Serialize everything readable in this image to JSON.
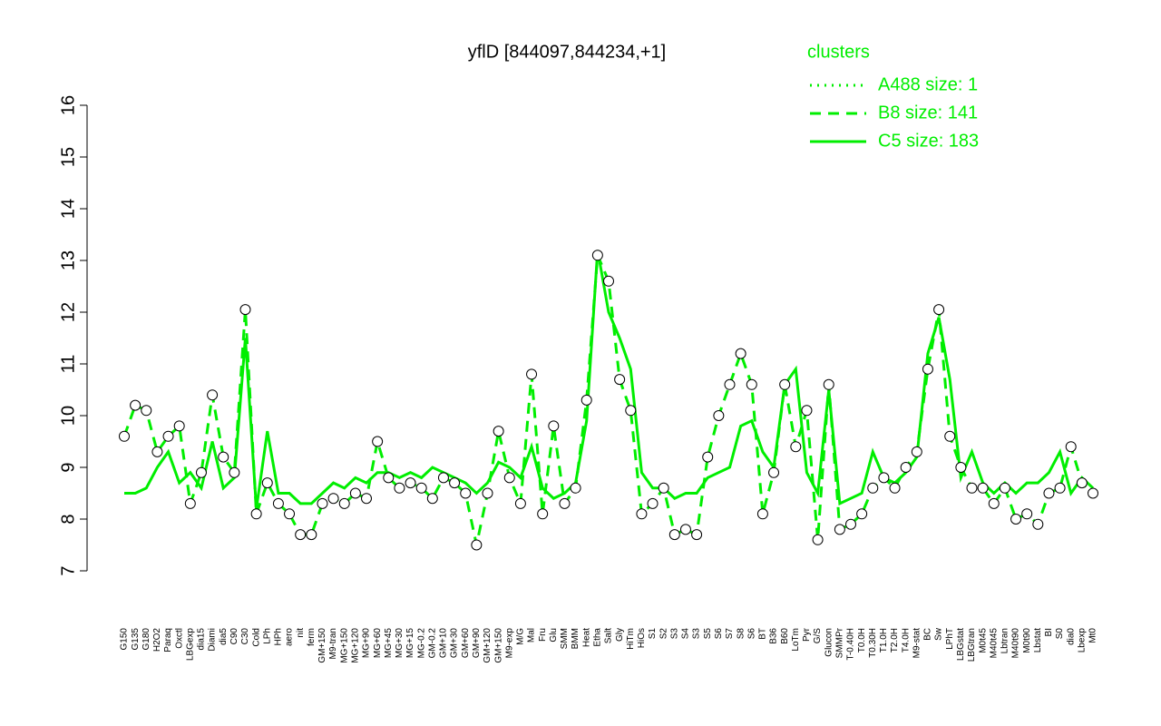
{
  "chart_data": {
    "type": "line",
    "title": "yflD [844097,844234,+1]",
    "legend_title": "clusters",
    "legend_position": "top-right",
    "categories": [
      "G150",
      "G135",
      "G180",
      "H2O2",
      "Paraq",
      "Oxctl",
      "LBGexp",
      "dia15",
      "Diami",
      "dia5",
      "C90",
      "C30",
      "Cold",
      "LPh",
      "HPh",
      "aero",
      "nit",
      "ferm",
      "GM+150",
      "M9-tran",
      "MG+150",
      "MG+120",
      "MG+90",
      "MG+60",
      "MG+45",
      "MG+30",
      "MG+15",
      "MG-0.2",
      "GM-0.2",
      "GM+10",
      "GM+30",
      "GM+60",
      "GM+90",
      "GM+120",
      "GM+150",
      "M9-exp",
      "M/G",
      "Mal",
      "Fru",
      "Glu",
      "SMM",
      "BMM",
      "Heat",
      "Etha",
      "Salt",
      "Gly",
      "HiTm",
      "HiOs",
      "S1",
      "S2",
      "S3",
      "S4",
      "S3",
      "S5",
      "S6",
      "S7",
      "S8",
      "S6",
      "BT",
      "B36",
      "B60",
      "LoTm",
      "Pyr",
      "G/S",
      "Glucon",
      "SMMPr",
      "T-0.40H",
      "T0.0H",
      "T0.30H",
      "T1.0H",
      "T2.0H",
      "T4.0H",
      "M9-stat",
      "BC",
      "Sw",
      "LPhT",
      "LBGstat",
      "LBGtran",
      "M0t45",
      "M40t45",
      "Lbtran",
      "M40t90",
      "M0t90",
      "Lbstat",
      "BI",
      "S0",
      "dia0",
      "Lbexp",
      "Mt0"
    ],
    "series": [
      {
        "name": "A488 size: 1",
        "color": "#00ee00",
        "dash": "dotted",
        "markers": false,
        "values": [
          null,
          null,
          null,
          null,
          null,
          null,
          null,
          null,
          null,
          null,
          null,
          null,
          null,
          null,
          null,
          null,
          null,
          null,
          null,
          null,
          null,
          null,
          null,
          null,
          null,
          null,
          null,
          null,
          null,
          null,
          null,
          null,
          null,
          null,
          null,
          null,
          null,
          null,
          null,
          null,
          null,
          null,
          null,
          null,
          null,
          null,
          null,
          null,
          null,
          null,
          null,
          null,
          null,
          null,
          null,
          null,
          null,
          null,
          null,
          null,
          null,
          null,
          null,
          null,
          null,
          null,
          null,
          null,
          null,
          null,
          null,
          null,
          null,
          null,
          null,
          null,
          null,
          null,
          null,
          null,
          null,
          null,
          null,
          null,
          null,
          null,
          null,
          null,
          null
        ]
      },
      {
        "name": "B8 size: 141",
        "color": "#00ee00",
        "dash": "dashed",
        "markers": true,
        "values": [
          9.6,
          10.2,
          10.1,
          9.3,
          9.6,
          9.8,
          8.3,
          8.9,
          10.4,
          9.2,
          8.9,
          12.05,
          8.1,
          8.7,
          8.3,
          8.1,
          7.7,
          7.7,
          8.3,
          8.4,
          8.3,
          8.5,
          8.4,
          9.5,
          8.8,
          8.6,
          8.7,
          8.6,
          8.4,
          8.8,
          8.7,
          8.5,
          7.5,
          8.5,
          9.7,
          8.8,
          8.3,
          10.8,
          8.1,
          9.8,
          8.3,
          8.6,
          10.3,
          13.1,
          12.6,
          10.7,
          10.1,
          8.1,
          8.3,
          8.6,
          7.7,
          7.8,
          7.7,
          9.2,
          10.0,
          10.6,
          11.2,
          10.6,
          8.1,
          8.9,
          10.6,
          9.4,
          10.1,
          7.6,
          10.6,
          7.8,
          7.9,
          8.1,
          8.6,
          8.8,
          8.6,
          9.0,
          9.3,
          10.9,
          12.05,
          9.6,
          9.0,
          8.6,
          8.6,
          8.3,
          8.6,
          8.0,
          8.1,
          7.9,
          8.5,
          8.6,
          9.4,
          8.7,
          8.5
        ]
      },
      {
        "name": "C5 size: 183",
        "color": "#00ee00",
        "dash": "solid",
        "markers": false,
        "values": [
          8.5,
          8.5,
          8.6,
          9.0,
          9.3,
          8.7,
          8.9,
          8.6,
          9.5,
          8.6,
          8.8,
          11.5,
          8.2,
          9.7,
          8.5,
          8.5,
          8.3,
          8.3,
          8.5,
          8.7,
          8.6,
          8.8,
          8.7,
          8.9,
          8.9,
          8.8,
          8.9,
          8.8,
          9.0,
          8.9,
          8.8,
          8.7,
          8.5,
          8.7,
          9.1,
          9.0,
          8.8,
          9.4,
          8.6,
          8.4,
          8.5,
          8.7,
          9.9,
          13.2,
          12.0,
          11.5,
          10.9,
          8.9,
          8.6,
          8.6,
          8.4,
          8.5,
          8.5,
          8.8,
          8.9,
          9.0,
          9.8,
          9.9,
          9.3,
          9.0,
          10.6,
          10.9,
          8.9,
          8.5,
          10.5,
          8.3,
          8.4,
          8.5,
          9.3,
          8.8,
          8.7,
          8.9,
          9.2,
          11.2,
          11.9,
          10.7,
          8.8,
          9.3,
          8.7,
          8.5,
          8.7,
          8.5,
          8.7,
          8.7,
          8.9,
          9.3,
          8.5,
          8.8,
          8.6
        ]
      }
    ],
    "ylim": [
      7,
      16
    ],
    "yticks": [
      7,
      8,
      9,
      10,
      11,
      12,
      13,
      14,
      15,
      16
    ]
  }
}
